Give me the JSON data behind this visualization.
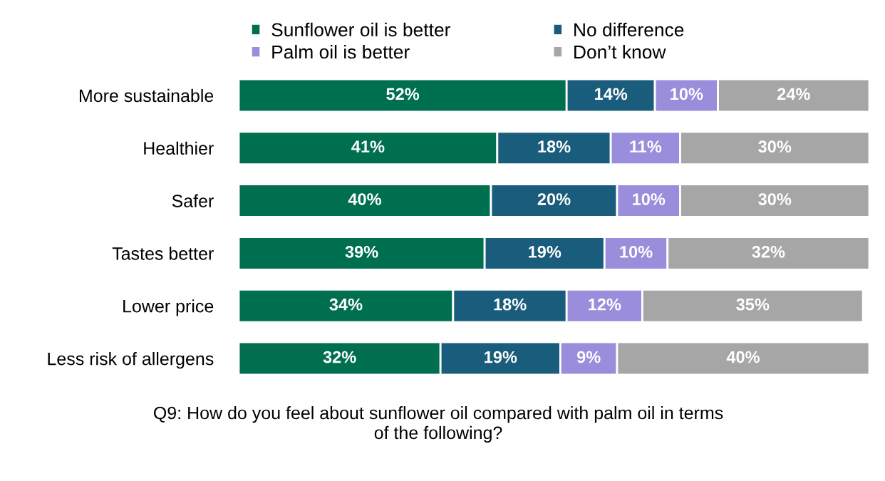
{
  "chart_data": {
    "type": "bar",
    "orientation": "horizontal",
    "stacked": true,
    "legend": "top",
    "categories": [
      "More sustainable",
      "Healthier",
      "Safer",
      "Tastes better",
      "Lower price",
      "Less risk of allergens"
    ],
    "series": [
      {
        "name": "Sunflower oil is better",
        "color": "#006f4f",
        "values": [
          52,
          41,
          40,
          39,
          34,
          32
        ],
        "value_labels": [
          "52%",
          "41%",
          "40%",
          "39%",
          "34%",
          "32%"
        ]
      },
      {
        "name": "No difference",
        "color": "#1a5c7c",
        "values": [
          14,
          18,
          20,
          19,
          18,
          19
        ],
        "value_labels": [
          "14%",
          "18%",
          "20%",
          "19%",
          "18%",
          "19%"
        ]
      },
      {
        "name": "Palm oil is better",
        "color": "#9a8ddb",
        "values": [
          10,
          11,
          10,
          10,
          12,
          9
        ],
        "value_labels": [
          "10%",
          "11%",
          "10%",
          "10%",
          "12%",
          "9%"
        ]
      },
      {
        "name": "Don’t know",
        "color": "#a6a6a6",
        "values": [
          24,
          30,
          30,
          32,
          35,
          40
        ],
        "value_labels": [
          "24%",
          "30%",
          "30%",
          "32%",
          "35%",
          "40%"
        ]
      }
    ],
    "annotations": [
      "Q9: How do you feel about sunflower oil compared with palm oil in terms\nof the following?"
    ]
  }
}
